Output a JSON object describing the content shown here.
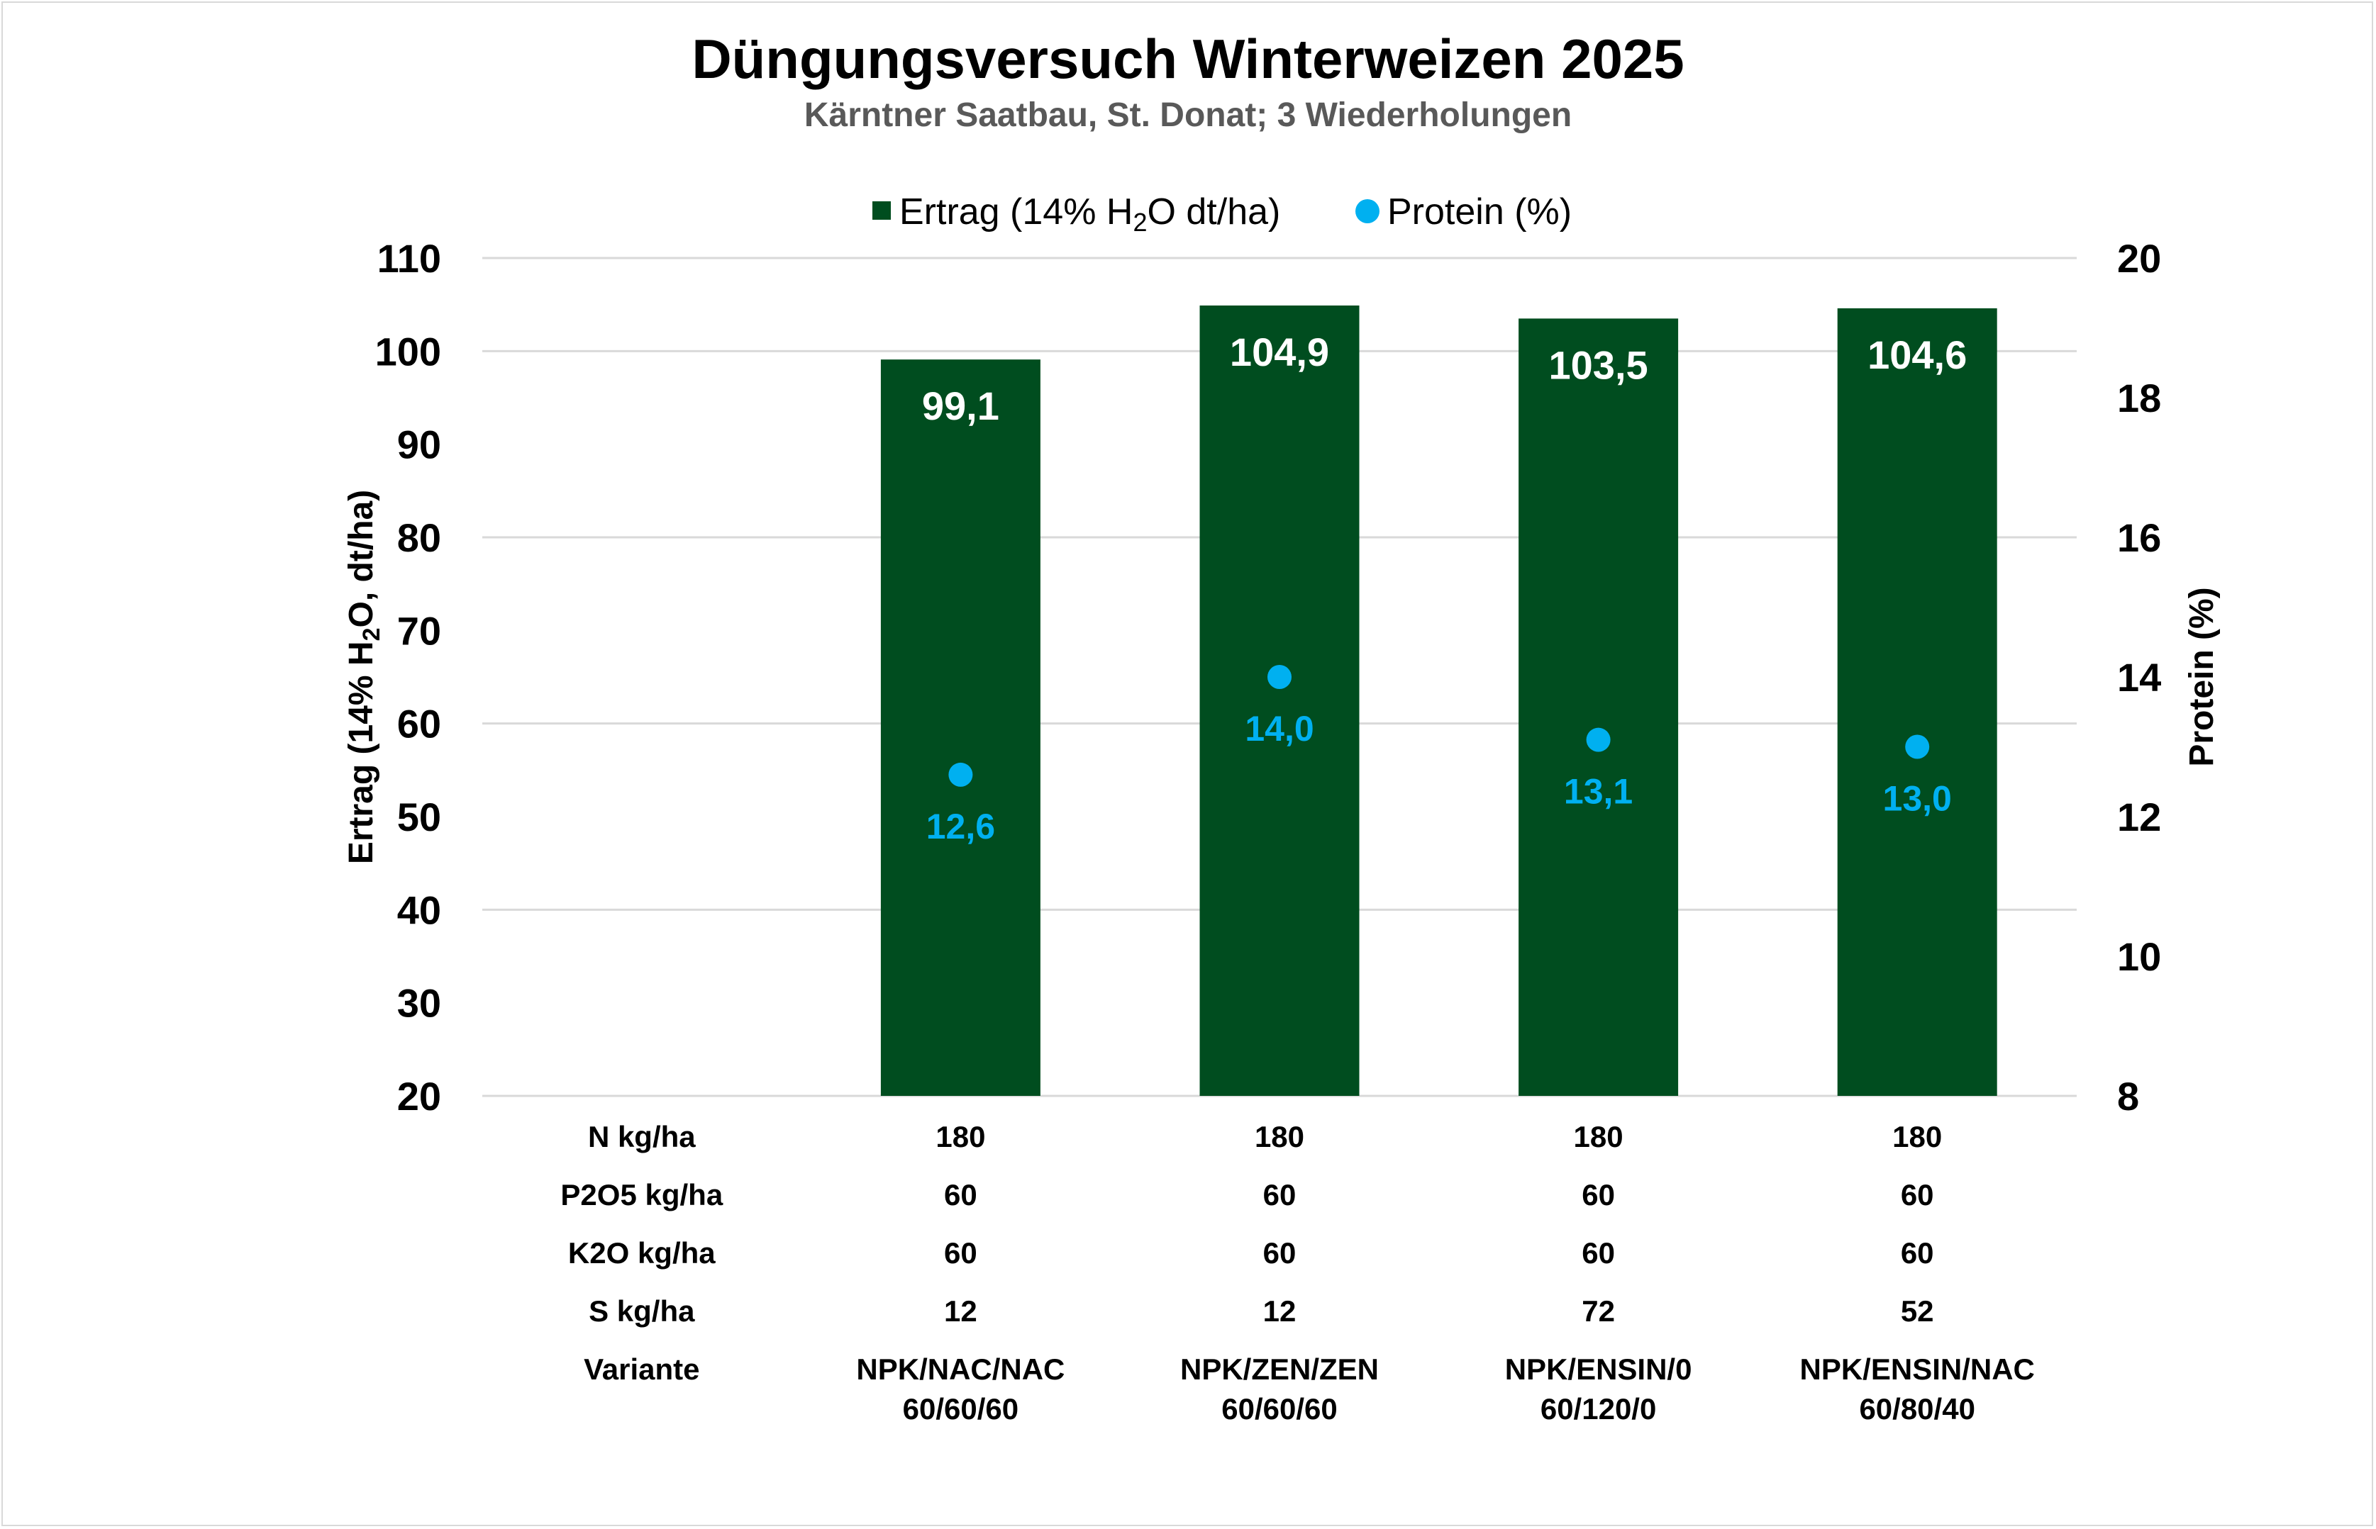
{
  "chart_data": {
    "type": "bar",
    "title": "Düngungsversuch Winterweizen 2025",
    "subtitle": "Kärntner Saatbau, St. Donat; 3 Wiederholungen",
    "categories": [
      "",
      "NPK/NAC/NAC 60/60/60",
      "NPK/ZEN/ZEN 60/60/60",
      "NPK/ENSIN/0 60/120/0",
      "NPK/ENSIN/NAC 60/80/40"
    ],
    "series": [
      {
        "name": "Ertrag (14% H₂O dt/ha)",
        "type": "bar",
        "axis": "left",
        "color": "#004d1f",
        "values": [
          null,
          99.1,
          104.9,
          103.5,
          104.6
        ],
        "labels": [
          "",
          "99,1",
          "104,9",
          "103,5",
          "104,6"
        ]
      },
      {
        "name": "Protein (%)",
        "type": "scatter",
        "axis": "right",
        "color": "#00b0f0",
        "values": [
          null,
          12.6,
          14.0,
          13.1,
          13.0
        ],
        "labels": [
          "",
          "12,6",
          "14,0",
          "13,1",
          "13,0"
        ]
      }
    ],
    "ylabel": "Ertrag (14% H₂O, dt/ha)",
    "ylim": [
      20,
      110
    ],
    "yticks": [
      "20",
      "30",
      "40",
      "50",
      "60",
      "70",
      "80",
      "90",
      "100",
      "110"
    ],
    "y2label": "Protein (%)",
    "y2lim": [
      8,
      20
    ],
    "y2ticks": [
      "8",
      "10",
      "12",
      "14",
      "16",
      "18",
      "20"
    ],
    "grid": true,
    "legend_position": "top",
    "table": {
      "row_labels": [
        "N kg/ha",
        "P2O5 kg/ha",
        "K2O kg/ha",
        "S kg/ha",
        "Variante"
      ],
      "columns": [
        [
          "",
          "",
          "",
          "",
          ""
        ],
        [
          "180",
          "60",
          "60",
          "12",
          "NPK/NAC/NAC|60/60/60"
        ],
        [
          "180",
          "60",
          "60",
          "12",
          "NPK/ZEN/ZEN|60/60/60"
        ],
        [
          "180",
          "60",
          "60",
          "72",
          "NPK/ENSIN/0|60/120/0"
        ],
        [
          "180",
          "60",
          "60",
          "52",
          "NPK/ENSIN/NAC|60/80/40"
        ]
      ]
    }
  }
}
